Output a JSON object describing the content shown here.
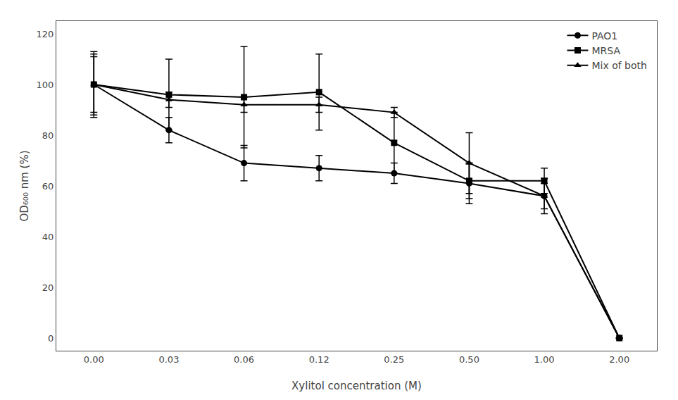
{
  "chart_data": {
    "type": "line",
    "xlabel": "Xylitol concentration (M)",
    "ylabel": "OD₆₀₀ nm (%)",
    "categories": [
      "0.00",
      "0.03",
      "0.06",
      "0.12",
      "0.25",
      "0.50",
      "1.00",
      "2.00"
    ],
    "series": [
      {
        "name": "PAO1",
        "color": "#000000",
        "marker": "circle",
        "values": [
          100,
          82,
          69,
          67,
          65,
          61,
          56,
          0
        ],
        "errors": [
          12,
          5,
          7,
          5,
          4,
          8,
          5,
          0
        ]
      },
      {
        "name": "MRSA",
        "color": "#000000",
        "marker": "square",
        "values": [
          100,
          96,
          95,
          97,
          77,
          62,
          62,
          0
        ],
        "errors": [
          13,
          14,
          20,
          15,
          12,
          7,
          5,
          0
        ]
      },
      {
        "name": "Mix of both",
        "color": "#000000",
        "marker": "triangle-up",
        "values": [
          100,
          94,
          92,
          92,
          89,
          69,
          56,
          0
        ],
        "errors": [
          11,
          3,
          3,
          3,
          2,
          12,
          7,
          0
        ]
      }
    ],
    "ylim": [
      -5,
      125
    ],
    "yticks": [
      0,
      20,
      40,
      60,
      80,
      100,
      120
    ],
    "grid": false,
    "legend": "upper right"
  }
}
